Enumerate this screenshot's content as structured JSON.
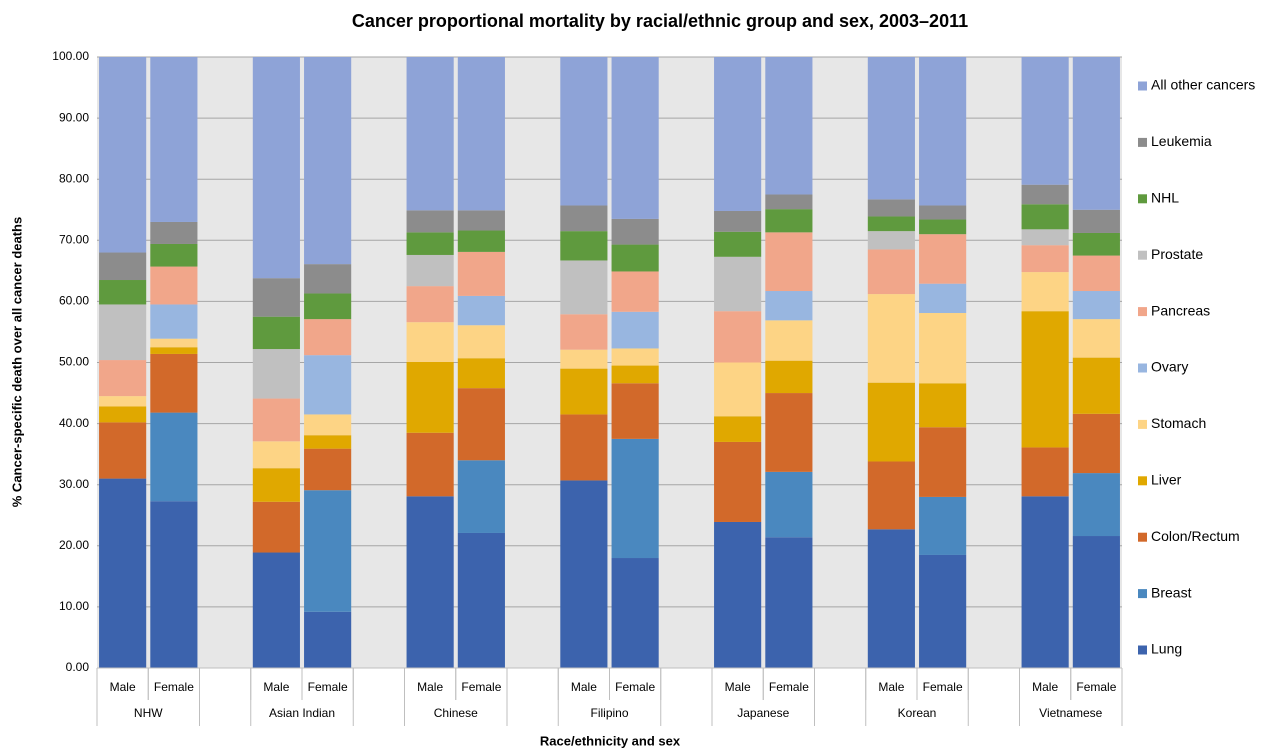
{
  "chart_data": {
    "type": "stacked-bar",
    "title": "Cancer proportional mortality by racial/ethnic group and sex, 2003–2011",
    "y_label": "% Cancer-specific death over all cancer deaths",
    "x_label": "Race/ethnicity and sex",
    "categories": [
      "Male",
      "Female",
      null,
      "Male",
      "Female",
      null,
      "Male",
      "Female",
      null,
      "Male",
      "Female",
      null,
      "Male",
      "Female",
      null,
      "Male",
      "Female",
      null,
      "Male",
      "Female"
    ],
    "groups": [
      "NHW",
      "Asian Indian",
      "Chinese",
      "Filipino",
      "Japanese",
      "Korean",
      "Vietnamese"
    ],
    "ylim": [
      0,
      100
    ],
    "yticks": [
      {
        "value": 0,
        "label": "0.00"
      },
      {
        "value": 10,
        "label": "10.00"
      },
      {
        "value": 20,
        "label": "20.00"
      },
      {
        "value": 30,
        "label": "30.00"
      },
      {
        "value": 40,
        "label": "40.00"
      },
      {
        "value": 50,
        "label": "50.00"
      },
      {
        "value": 60,
        "label": "60.00"
      },
      {
        "value": 70,
        "label": "70.00"
      },
      {
        "value": 80,
        "label": "80.00"
      },
      {
        "value": 90,
        "label": "90.00"
      },
      {
        "value": 100,
        "label": "100.00"
      }
    ],
    "grid": true,
    "legend": "right",
    "series": [
      {
        "name": "Lung",
        "color": "#3c63ad",
        "values": [
          31.0,
          27.3,
          null,
          18.9,
          9.2,
          null,
          28.1,
          22.1,
          null,
          30.7,
          18.0,
          null,
          23.9,
          21.4,
          null,
          22.7,
          18.5,
          null,
          28.1,
          21.6
        ]
      },
      {
        "name": "Breast",
        "color": "#4a88bf",
        "values": [
          null,
          14.5,
          null,
          null,
          19.9,
          null,
          null,
          11.9,
          null,
          null,
          19.5,
          null,
          null,
          10.7,
          null,
          null,
          9.5,
          null,
          null,
          10.3
        ]
      },
      {
        "name": "Colon/Rectum",
        "color": "#d2692a",
        "values": [
          9.2,
          9.6,
          null,
          8.3,
          6.8,
          null,
          10.4,
          11.8,
          null,
          10.8,
          9.1,
          null,
          13.1,
          12.9,
          null,
          11.1,
          11.4,
          null,
          8.0,
          9.7
        ]
      },
      {
        "name": "Liver",
        "color": "#e0a800",
        "values": [
          2.6,
          1.1,
          null,
          5.5,
          2.2,
          null,
          11.6,
          4.9,
          null,
          7.5,
          2.9,
          null,
          4.2,
          5.3,
          null,
          12.9,
          7.2,
          null,
          22.3,
          9.2
        ]
      },
      {
        "name": "Stomach",
        "color": "#fdd485",
        "values": [
          1.7,
          1.4,
          null,
          4.4,
          3.4,
          null,
          6.5,
          5.4,
          null,
          3.1,
          2.8,
          null,
          8.8,
          6.6,
          null,
          14.5,
          11.5,
          null,
          6.4,
          6.3
        ]
      },
      {
        "name": "Ovary",
        "color": "#98b6e0",
        "values": [
          null,
          5.6,
          null,
          null,
          9.7,
          null,
          null,
          4.8,
          null,
          null,
          6.0,
          null,
          null,
          4.8,
          null,
          null,
          4.8,
          null,
          null,
          4.6
        ]
      },
      {
        "name": "Pancreas",
        "color": "#f1a68a",
        "values": [
          5.9,
          6.2,
          null,
          7.0,
          5.9,
          null,
          5.9,
          7.2,
          null,
          5.8,
          6.6,
          null,
          8.4,
          9.6,
          null,
          7.3,
          8.1,
          null,
          4.4,
          5.8
        ]
      },
      {
        "name": "Prostate",
        "color": "#c0c0c0",
        "values": [
          9.1,
          null,
          null,
          8.1,
          null,
          null,
          5.1,
          null,
          null,
          8.8,
          null,
          null,
          8.9,
          null,
          null,
          3.0,
          null,
          null,
          2.6,
          null
        ]
      },
      {
        "name": "NHL",
        "color": "#5f9a3e",
        "values": [
          4.0,
          3.7,
          null,
          5.3,
          4.2,
          null,
          3.7,
          3.5,
          null,
          4.8,
          4.4,
          null,
          4.1,
          3.8,
          null,
          2.4,
          2.4,
          null,
          4.1,
          3.7
        ]
      },
      {
        "name": "Leukemia",
        "color": "#8c8c8c",
        "values": [
          4.5,
          3.6,
          null,
          6.3,
          4.8,
          null,
          3.6,
          3.3,
          null,
          4.2,
          4.2,
          null,
          3.4,
          2.4,
          null,
          2.8,
          2.3,
          null,
          3.2,
          3.8
        ]
      },
      {
        "name": "All other cancers",
        "color": "#8ea3d7",
        "values": [
          32.0,
          27.0,
          null,
          36.2,
          33.9,
          null,
          25.1,
          25.1,
          null,
          24.3,
          26.5,
          null,
          25.2,
          22.5,
          null,
          23.3,
          24.3,
          null,
          20.9,
          25.0
        ]
      }
    ]
  }
}
